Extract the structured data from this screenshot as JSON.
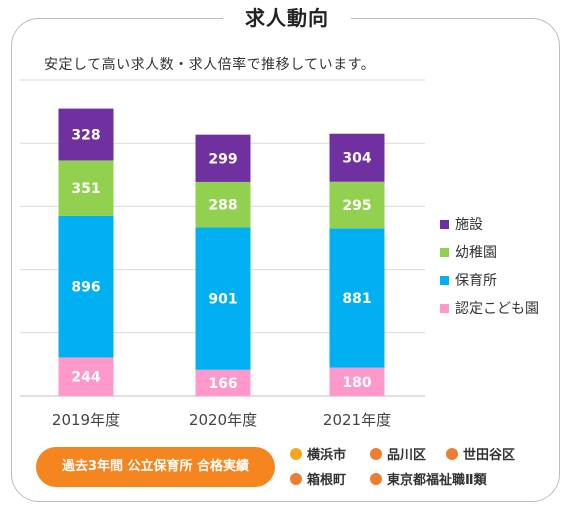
{
  "header": {
    "title": "求人動向"
  },
  "subtitle": "安定して高い求人数・求人倍率で推移しています。",
  "colors": {
    "shisetsu": "#7030a0",
    "youchien": "#92d050",
    "hoikusho": "#00b0f0",
    "nintei": "#ff99cc",
    "accent": "#f5851f",
    "dot": "#ed7d31",
    "dot_first": "#f5a623"
  },
  "chart_data": {
    "type": "bar",
    "stacked": true,
    "categories": [
      "2019年度",
      "2020年度",
      "2021年度"
    ],
    "series": [
      {
        "name": "認定こども園",
        "values": [
          244,
          166,
          180
        ]
      },
      {
        "name": "保育所",
        "values": [
          896,
          901,
          881
        ]
      },
      {
        "name": "幼稚園",
        "values": [
          351,
          288,
          295
        ]
      },
      {
        "name": "施設",
        "values": [
          328,
          299,
          304
        ]
      }
    ],
    "ylim": [
      0,
      2000
    ],
    "grid": true,
    "legend_position": "right"
  },
  "legend": [
    {
      "label": "施設",
      "color": "#7030a0"
    },
    {
      "label": "幼稚園",
      "color": "#92d050"
    },
    {
      "label": "保育所",
      "color": "#00b0f0"
    },
    {
      "label": "認定こども園",
      "color": "#ff99cc"
    }
  ],
  "footer": {
    "pill_label": "過去3年間 公立保育所 合格実績",
    "cities": [
      "横浜市",
      "品川区",
      "世田谷区",
      "箱根町",
      "東京都福祉職Ⅱ類"
    ]
  }
}
